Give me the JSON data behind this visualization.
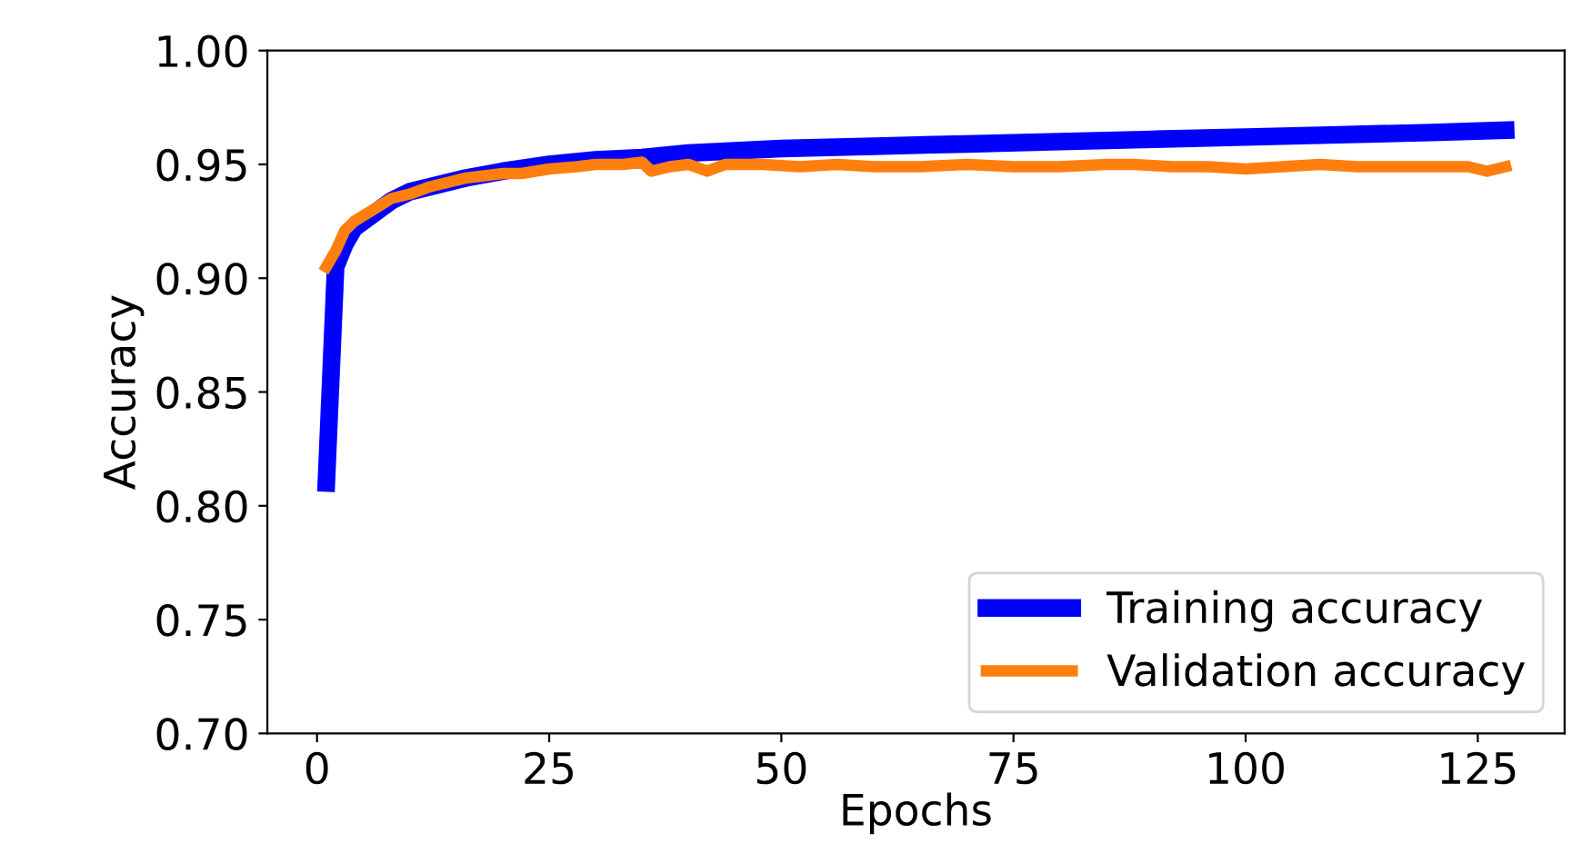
{
  "chart_data": {
    "type": "line",
    "xlabel": "Epochs",
    "ylabel": "Accuracy",
    "xlim": [
      -5.35,
      134.35
    ],
    "xticks": [
      0,
      25,
      50,
      75,
      100,
      125
    ],
    "ylim": [
      0.7,
      1.0
    ],
    "yticks": [
      {
        "value": 0.7,
        "label": "0.70"
      },
      {
        "value": 0.75,
        "label": "0.75"
      },
      {
        "value": 0.8,
        "label": "0.80"
      },
      {
        "value": 0.85,
        "label": "0.85"
      },
      {
        "value": 0.9,
        "label": "0.90"
      },
      {
        "value": 0.95,
        "label": "0.95"
      },
      {
        "value": 1.0,
        "label": "1.00"
      }
    ],
    "grid": false,
    "legend": "bottom right",
    "marker": "none",
    "line_style": "solid",
    "series": [
      {
        "name": "Training accuracy",
        "color": "#0000ff",
        "x": [
          1,
          2,
          3,
          4,
          6,
          8,
          10,
          13,
          16,
          20,
          25,
          30,
          35,
          40,
          50,
          60,
          70,
          80,
          90,
          100,
          110,
          120,
          128
        ],
        "values": [
          0.81,
          0.905,
          0.915,
          0.922,
          0.928,
          0.934,
          0.938,
          0.941,
          0.944,
          0.947,
          0.95,
          0.952,
          0.953,
          0.955,
          0.957,
          0.958,
          0.959,
          0.96,
          0.961,
          0.962,
          0.963,
          0.964,
          0.965
        ]
      },
      {
        "name": "Validation accuracy",
        "color": "#ff7f0e",
        "x": [
          1,
          2,
          3,
          4,
          6,
          8,
          10,
          12,
          14,
          16,
          18,
          20,
          22,
          25,
          28,
          30,
          33,
          35,
          36,
          38,
          40,
          42,
          44,
          48,
          52,
          56,
          60,
          65,
          70,
          75,
          80,
          85,
          88,
          92,
          96,
          100,
          104,
          108,
          112,
          116,
          120,
          124,
          126,
          128
        ],
        "values": [
          0.905,
          0.912,
          0.921,
          0.925,
          0.93,
          0.935,
          0.937,
          0.94,
          0.942,
          0.944,
          0.945,
          0.946,
          0.946,
          0.948,
          0.949,
          0.95,
          0.95,
          0.951,
          0.947,
          0.949,
          0.95,
          0.947,
          0.95,
          0.95,
          0.949,
          0.95,
          0.949,
          0.949,
          0.95,
          0.949,
          0.949,
          0.95,
          0.95,
          0.949,
          0.949,
          0.948,
          0.949,
          0.95,
          0.949,
          0.949,
          0.949,
          0.949,
          0.947,
          0.949
        ]
      }
    ]
  }
}
